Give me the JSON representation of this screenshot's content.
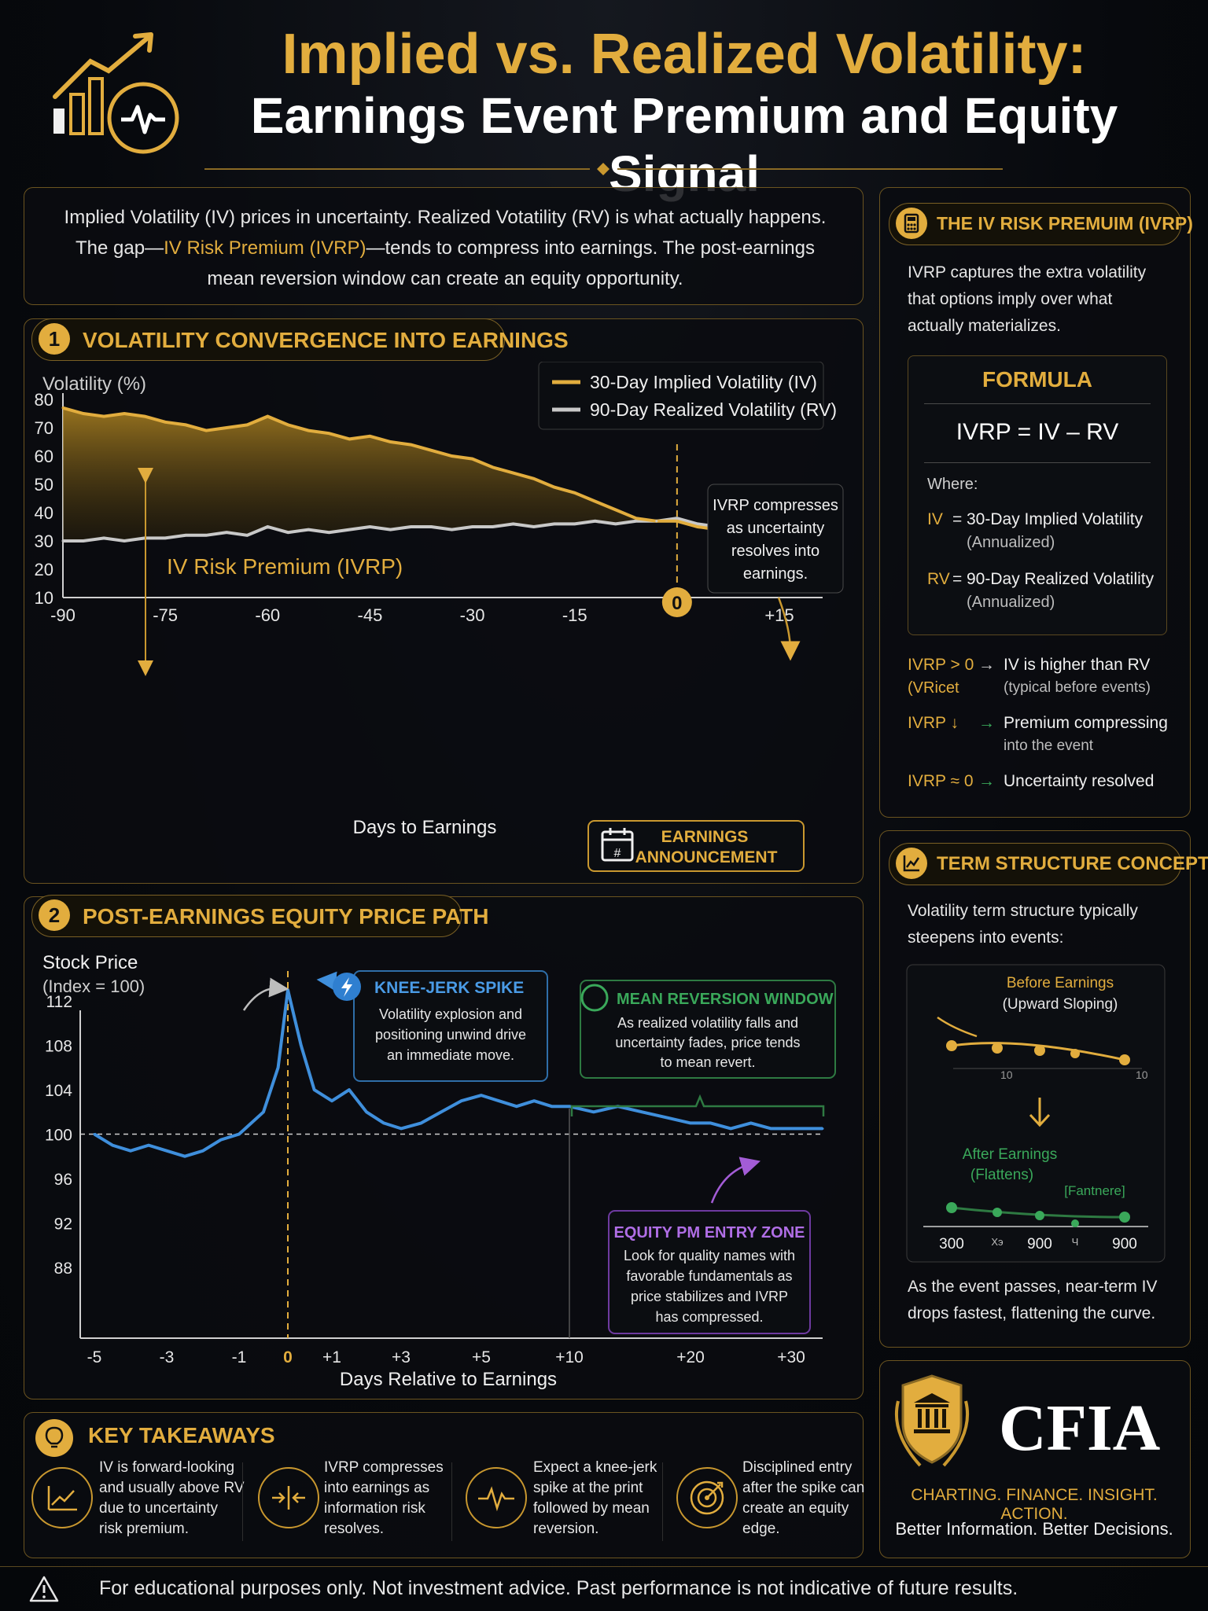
{
  "header": {
    "title_line1": "Implied vs. Realized Volatility:",
    "title_line2": "Earnings Event Premium and Equity Signal",
    "logo_icon": "bar-chart-pulse-icon"
  },
  "intro": {
    "line1": "Implied Volatility (IV) prices in uncertainty. Realized Votatility (RV) is what actually happens.",
    "line2_pre": "The gap—",
    "line2_highlight": "IV Risk Premium (IVRP)",
    "line2_post": "—tends to compress into earnings. The post-earnings",
    "line3": "mean reversion window can create an equity opportunity."
  },
  "section1": {
    "number": "1",
    "title": "VOLATILITY CONVERGENCE INTO EARNINGS",
    "ylabel": "Volatility (%)",
    "xlabel": "Days to Earnings",
    "premium_label": "IV Risk Premium (IVRP)",
    "callout": [
      "IVRP compresses",
      "as uncertainty",
      "resolves into",
      "earnings."
    ],
    "marker": "0",
    "earnings_box": [
      "EARNINGS",
      "ANNOUNCEMENT"
    ]
  },
  "section2": {
    "number": "2",
    "title": "POST-EARNINGS EQUITY PRICE PATH",
    "ylabel_line1": "Stock Price",
    "ylabel_line2": "(Index = 100)",
    "xlabel": "Days Relative to Earnings",
    "spike": {
      "title": "KNEE-JERK SPIKE",
      "lines": [
        "Volatility explosion and",
        "positioning unwind drive",
        "an immediate move."
      ]
    },
    "reversion": {
      "title": "MEAN REVERSION WINDOW",
      "lines": [
        "As realized volatility falls and",
        "uncertainty fades, price tends",
        "to mean revert."
      ]
    },
    "entry": {
      "title": "EQUITY PM ENTRY ZONE",
      "lines": [
        "Look for quality names with",
        "favorable fundamentals as",
        "price stabilizes and IVRP",
        "has compressed."
      ]
    }
  },
  "chart_data": [
    {
      "type": "line",
      "title": "",
      "xlabel": "Days to Earnings",
      "ylabel": "Volatility (%)",
      "xlim": [
        -90,
        20
      ],
      "ylim": [
        10,
        80
      ],
      "xticks": [
        "-90",
        "-75",
        "-60",
        "-45",
        "-30",
        "-15",
        "0",
        "+15"
      ],
      "yticks": [
        10,
        20,
        30,
        40,
        50,
        60,
        70,
        80
      ],
      "legend_position": "top-right",
      "series": [
        {
          "name": "30-Day Implied Volatility (IV)",
          "color": "#e2ad3e",
          "x": [
            -90,
            -87,
            -84,
            -81,
            -78,
            -75,
            -72,
            -69,
            -66,
            -63,
            -60,
            -57,
            -54,
            -51,
            -48,
            -45,
            -42,
            -39,
            -36,
            -33,
            -30,
            -27,
            -24,
            -21,
            -18,
            -15,
            -12,
            -9,
            -6,
            -3,
            0,
            3,
            6,
            9,
            12,
            15,
            18,
            20
          ],
          "y": [
            77,
            75,
            74,
            75,
            74,
            72,
            71,
            69,
            70,
            71,
            74,
            71,
            69,
            68,
            66,
            67,
            65,
            64,
            62,
            60,
            59,
            56,
            54,
            52,
            49,
            47,
            44,
            41,
            38,
            37,
            37,
            35,
            34,
            33,
            32,
            31,
            31,
            31
          ]
        },
        {
          "name": "90-Day Realized Volatility (RV)",
          "color": "#c8c8c8",
          "x": [
            -90,
            -87,
            -84,
            -81,
            -78,
            -75,
            -72,
            -69,
            -66,
            -63,
            -60,
            -57,
            -54,
            -51,
            -48,
            -45,
            -42,
            -39,
            -36,
            -33,
            -30,
            -27,
            -24,
            -21,
            -18,
            -15,
            -12,
            -9,
            -6,
            -3,
            0,
            3,
            6,
            9,
            12,
            15,
            18,
            20
          ],
          "y": [
            30,
            30,
            31,
            30,
            31,
            31,
            32,
            32,
            33,
            32,
            35,
            33,
            34,
            33,
            34,
            35,
            34,
            35,
            35,
            34,
            35,
            35,
            36,
            35,
            36,
            36,
            37,
            36,
            37,
            37,
            38,
            36,
            35,
            34,
            33,
            32,
            31,
            30
          ]
        }
      ]
    },
    {
      "type": "line",
      "title": "",
      "xlabel": "Days Relative to Earnings",
      "ylabel": "Stock Price (Index = 100)",
      "ylim": [
        86,
        114
      ],
      "yticks": [
        88,
        92,
        96,
        100,
        104,
        108,
        112
      ],
      "xticks": [
        "-5",
        "-3",
        "-1",
        "0",
        "+1",
        "+3",
        "+5",
        "+10",
        "+20",
        "+30"
      ],
      "reference_line": 100,
      "series": [
        {
          "name": "",
          "color": "#3f8fdc",
          "x": [
            -5,
            -4.5,
            -4,
            -3.5,
            -3,
            -2.5,
            -2,
            -1.5,
            -1,
            -0.5,
            -0.2,
            0,
            0.3,
            0.6,
            1,
            1.5,
            2,
            2.5,
            3,
            3.5,
            4,
            4.5,
            5,
            6,
            7,
            8,
            9,
            10,
            12,
            14,
            16,
            18,
            20,
            22,
            24,
            26,
            28,
            30,
            32
          ],
          "y": [
            100,
            99,
            98.5,
            99,
            98.5,
            98,
            98.5,
            99.5,
            100,
            102,
            106,
            113,
            108,
            104,
            103,
            104,
            102,
            101,
            100.5,
            101,
            102,
            103,
            103.5,
            103,
            102.5,
            103,
            102.5,
            102.5,
            102,
            102.5,
            102,
            101.5,
            101,
            101,
            100.5,
            101,
            100.5,
            100.5,
            100.5
          ]
        }
      ]
    }
  ],
  "sidebar": {
    "ivrp": {
      "title": "THE IV RISK PREMUIM (IVRP)",
      "icon": "calculator-icon",
      "desc": [
        "IVRP captures the extra volatility",
        "that options imply over what",
        "actually materializes."
      ],
      "formula_title": "FORMULA",
      "formula": "IVRP = IV – RV",
      "where": "Where:",
      "iv_key": "IV",
      "iv_eq": "=",
      "iv_def": "30-Day Implied Volatility",
      "iv_note": "(Annualized)",
      "rv_key": "RV",
      "rv_eq": "=",
      "rv_def": "90-Day Realized Volatility",
      "rv_note": "(Annualized)",
      "rules": [
        {
          "key": "IVRP > 0",
          "sub": "(VRicet",
          "arrow": "→",
          "text": "IV is higher than RV",
          "note": "(typical before events)"
        },
        {
          "key": "IVRP ↓",
          "sub": "",
          "arrow": "→",
          "text": "Premium compressing",
          "note": "into the event"
        },
        {
          "key": "IVRP ≈ 0",
          "sub": "",
          "arrow": "→",
          "text": "Uncertainty resolved",
          "note": ""
        }
      ]
    },
    "term": {
      "title": "TERM STRUCTURE CONCEPT",
      "icon": "line-chart-icon",
      "desc": [
        "Volatility term structure typically",
        "steepens into events:"
      ],
      "before_title": "Before Earnings",
      "before_sub": "(Upward Sloping)",
      "before_ticks": [
        "10",
        "10"
      ],
      "after_title": "After Earnings",
      "after_sub": "(Flattens)",
      "after_tag": "[Fantnere]",
      "after_ticks": [
        "300",
        "Хэ",
        "900",
        "Ч",
        "900"
      ],
      "footer": [
        "As the event passes, near-term IV",
        "drops fastest, flattening the curve."
      ]
    },
    "brand": {
      "name": "CFIA",
      "tagline": "CHARTING. FINANCE. INSIGHT. ACTION.",
      "slogan": "Better Information. Better Decisions.",
      "logo_icon": "temple-laurel-icon"
    }
  },
  "takeaways": {
    "title": "KEY TAKEAWAYS",
    "icon": "lightbulb-icon",
    "items": [
      {
        "icon": "trend-chart-icon",
        "lines": [
          "IV is forward-looking",
          "and usually above RV",
          "due to uncertainty",
          "risk premium."
        ]
      },
      {
        "icon": "compress-arrows-icon",
        "lines": [
          "IVRP compresses",
          "into earnings as",
          "information risk",
          "resolves."
        ]
      },
      {
        "icon": "pulse-icon",
        "lines": [
          "Expect a knee-jerk",
          "spike at the print",
          "followed by mean",
          "reversion."
        ]
      },
      {
        "icon": "target-icon",
        "lines": [
          "Disciplined entry",
          "after the spike can",
          "create an equity",
          "edge."
        ]
      }
    ]
  },
  "footer": {
    "icon": "warning-icon",
    "text": "For educational purposes only. Not investment advice. Past performance is not indicative of future results."
  }
}
